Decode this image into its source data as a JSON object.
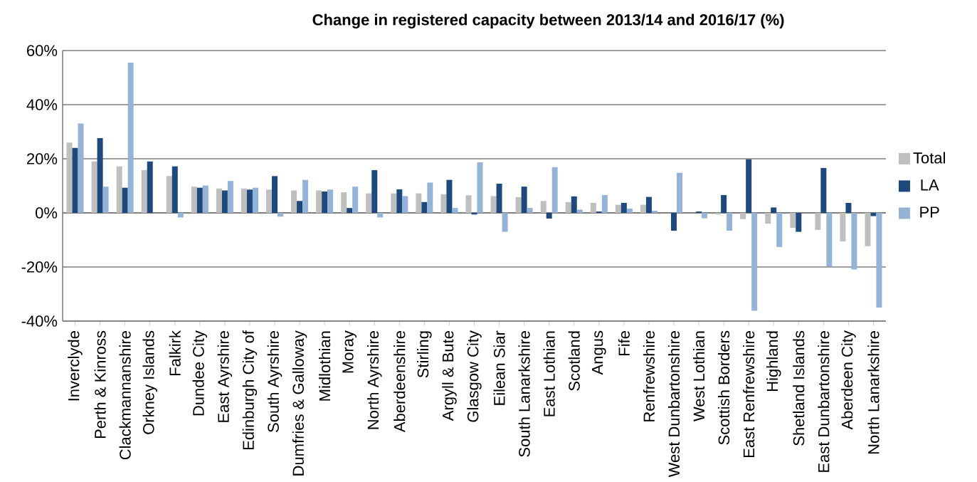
{
  "chart_data": {
    "type": "bar",
    "title": "Change in registered capacity between 2013/14 and 2016/17 (%)",
    "categories": [
      "Inverclyde",
      "Perth & Kinross",
      "Clackmannanshire",
      "Orkney Islands",
      "Falkirk",
      "Dundee City",
      "East Ayrshire",
      "Edinburgh City of",
      "South Ayrshire",
      "Dumfries & Galloway",
      "Midlothian",
      "Moray",
      "North Ayrshire",
      "Aberdeenshire",
      "Stirling",
      "Argyll & Bute",
      "Glasgow City",
      "Eilean Siar",
      "South Lanarkshire",
      "East Lothian",
      "Scotland",
      "Angus",
      "Fife",
      "Renfrewshire",
      "West Dunbartonshire",
      "West Lothian",
      "Scottish Borders",
      "East Renfrewshire",
      "Highland",
      "Shetland Islands",
      "East Dunbartonshire",
      "Aberdeen City",
      "North Lanarkshire"
    ],
    "series": [
      {
        "name": "Total",
        "color": "#bfbfbf",
        "values": [
          26,
          19,
          17.2,
          15.8,
          13.6,
          9.7,
          9.0,
          9.0,
          8.6,
          8.3,
          8.3,
          7.6,
          7.2,
          7.2,
          7.2,
          6.9,
          6.5,
          6.2,
          5.8,
          4.4,
          4.0,
          3.7,
          3.0,
          3.0,
          0,
          0,
          -0.6,
          -2.3,
          -4.0,
          -5.5,
          -6.3,
          -10.5,
          -12.3
        ]
      },
      {
        "name": "LA",
        "color": "#1f497d",
        "values": [
          24,
          27.6,
          9.3,
          19.0,
          17.2,
          9.3,
          8.3,
          8.6,
          13.6,
          4.4,
          7.9,
          1.8,
          15.8,
          8.7,
          4.0,
          12.2,
          -0.6,
          10.8,
          9.7,
          -2.1,
          6.1,
          0.5,
          3.7,
          5.9,
          -6.6,
          0.5,
          6.6,
          19.8,
          2.0,
          -7.0,
          16.6,
          3.7,
          -1.2
        ]
      },
      {
        "name": "PP",
        "color": "#95b3d7",
        "values": [
          33,
          9.7,
          55.5,
          0,
          -1.7,
          10.1,
          11.8,
          9.3,
          -1.4,
          12.2,
          8.6,
          9.7,
          -1.7,
          6.2,
          11.2,
          1.8,
          18.7,
          -7,
          1.8,
          16.9,
          1.2,
          6.6,
          1.6,
          0.8,
          14.8,
          -2.0,
          -6.6,
          -36.2,
          -12.6,
          0,
          -19.8,
          -20.9,
          -35
        ]
      }
    ],
    "ylim": [
      -40,
      60
    ],
    "yticks": [
      {
        "value": -40,
        "label": "-40%"
      },
      {
        "value": -20,
        "label": "-20%"
      },
      {
        "value": 0,
        "label": "0%"
      },
      {
        "value": 20,
        "label": "20%"
      },
      {
        "value": 40,
        "label": "40%"
      },
      {
        "value": 60,
        "label": "60%"
      }
    ],
    "grid": "y",
    "legend": "right"
  }
}
